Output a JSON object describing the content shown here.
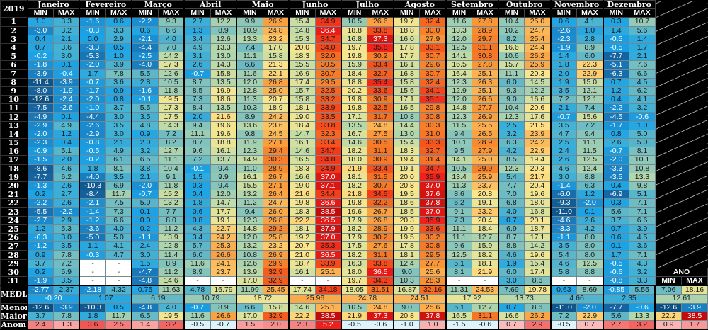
{
  "year": "2019",
  "header": {
    "min": "MIN",
    "max": "MAX",
    "ano": "ANO"
  },
  "labels": {
    "media": "MÉDIA",
    "menor": "Menor",
    "maior": "Maior",
    "anom": "Anom"
  },
  "days": [
    "1",
    "2",
    "3",
    "4",
    "5",
    "6",
    "7",
    "8",
    "9",
    "10",
    "11",
    "12",
    "13",
    "14",
    "15",
    "16",
    "17",
    "18",
    "19",
    "20",
    "21",
    "22",
    "23",
    "24",
    "25",
    "26",
    "27",
    "28",
    "29",
    "30",
    "31"
  ],
  "chart_data": {
    "type": "heatmap",
    "title": "2019",
    "months": [
      {
        "name": "Janeiro",
        "min": [
          "1.0",
          "-3.0",
          "0.4",
          "0.7",
          "-0.2",
          "-1.8",
          "-3.9",
          "-11.4",
          "-8.0",
          "-12.6",
          "-7.5",
          "-4.9",
          "-2.9",
          "-2.0",
          "-2.3",
          "-0.9",
          "-1.5",
          "-8.6",
          "-7.7",
          "-1.3",
          "0.2",
          "-2.2",
          "-5.5",
          "-2.7",
          "1.2",
          "-0.3",
          "-1.2",
          "0.9",
          "3.7",
          "0.2",
          "-1.9"
        ],
        "max": [
          "3.3",
          "3.2",
          "2.1",
          "3.6",
          "3.0",
          "0.1",
          "-0.4",
          "-3.9",
          "-1.9",
          "-2.4",
          "-2.6",
          "0.1",
          "4.9",
          "1.2",
          "0.4",
          "5.1",
          "2.0",
          "4.6",
          "6.2",
          "2.6",
          "2.7",
          "2.6",
          "-2.2",
          "2.9",
          "5.3",
          "3.0",
          "3.5",
          "7.8",
          "7.2",
          "5.9",
          "3.5"
        ],
        "avg_min": "-2.77",
        "avg_max": "2.37",
        "avg": "-0.20",
        "menor_min": "-12.6",
        "menor_max": "-3.9",
        "maior_min": "3.7",
        "maior_max": "7.8",
        "anom_min": "2.4",
        "anom_max": "1.3"
      },
      {
        "name": "Fevereiro",
        "min": [
          "-1.6",
          "-0.3",
          "0.0",
          "-3.3",
          "-5.3",
          "-2.0",
          "1.7",
          "-0.7",
          "-1.7",
          "-2.0",
          "-1.0",
          "-4.4",
          "-2.6",
          "-2.9",
          "-0.8",
          "-0.5",
          "-0.2",
          "1.8",
          "-4.0",
          "-10.3",
          "-8.4",
          "-2.1",
          "-1.4",
          "-1.2",
          "-3.6",
          "-5.0",
          "1.1",
          "-0.3",
          "-",
          "-",
          "-"
        ],
        "max": [
          "0.6",
          "3.3",
          "2.9",
          "0.5",
          "1.0",
          "3.9",
          "7.8",
          "3.6",
          "0.9",
          "0.8",
          "3.7",
          "3.0",
          "3.5",
          "3.0",
          "2.1",
          "4.9",
          "6.1",
          "8.1",
          "3.5",
          "6.9",
          "11.7",
          "7.5",
          "7.3",
          "6.6",
          "4.0",
          "5.0",
          "4.1",
          "4.7",
          "-",
          "-",
          "-"
        ],
        "avg_min": "-2.18",
        "avg_max": "4.32",
        "avg": "1.07",
        "menor_min": "-10.3",
        "menor_max": "0.5",
        "maior_min": "1.8",
        "maior_max": "11.7",
        "anom_min": "3.6",
        "anom_max": "2.5"
      },
      {
        "name": "Março",
        "min": [
          "-2.2",
          "0.6",
          "-2.1",
          "-4.4",
          "-2.5",
          "-4.0",
          "5.5",
          "2.8",
          "-1.6",
          "-0.1",
          "5.5",
          "3.5",
          "4.8",
          "0.9",
          "2.0",
          "3.2",
          "6.5",
          "3.8",
          "2.1",
          "-2.0",
          "-0.7",
          "5.0",
          "0.1",
          "0.0",
          "0.2",
          "-1.1",
          "2.4",
          "3.0",
          "1.5",
          "-4.7",
          "-4.8"
        ],
        "max": [
          "9.3",
          "6.6",
          "4.0",
          "7.0",
          "14.2",
          "17.3",
          "12.6",
          "10.5",
          "11.8",
          "19.5",
          "17.3",
          "17.5",
          "14.3",
          "7.2",
          "8.2",
          "12.7",
          "11.1",
          "10.4",
          "9.1",
          "11.8",
          "15.2",
          "13.2",
          "7.7",
          "8.0",
          "11.2",
          "13.9",
          "12.8",
          "11.4",
          "8.9",
          "11.2",
          "14.6"
        ],
        "avg_min": "0.75",
        "avg_max": "11.63",
        "avg": "6.19",
        "menor_min": "-4.8",
        "menor_max": "4.0",
        "maior_min": "6.5",
        "maior_max": "19.5",
        "anom_min": "1.4",
        "anom_max": "3.2"
      },
      {
        "name": "Abril",
        "min": [
          "2.7",
          "1.3",
          "3.4",
          "4.9",
          "3.1",
          "2.6",
          "-0.7",
          "8.7",
          "8.5",
          "7.3",
          "8.4",
          "2.0",
          "9.4",
          "11.1",
          "8.7",
          "9.6",
          "7.2",
          "-0.1",
          "1.5",
          "0.3",
          "0.4",
          "1.8",
          "0.6",
          "0.8",
          "4.3",
          "3.4",
          "5.7",
          "6.0",
          "11.6",
          "8.9",
          "-"
        ],
        "max": [
          "12.2",
          "8.9",
          "12.6",
          "13.3",
          "13.0",
          "14.3",
          "15.8",
          "13.5",
          "19.9",
          "18.6",
          "13.5",
          "21.6",
          "19.6",
          "19.6",
          "18.8",
          "16.1",
          "13.7",
          "9.4",
          "9.9",
          "9.4",
          "12.0",
          "14.7",
          "17.7",
          "19.1",
          "22.7",
          "24.2",
          "25.3",
          "26.6",
          "24.1",
          "23.7",
          "-"
        ],
        "avg_min": "4.78",
        "avg_max": "16.79",
        "avg": "10.79",
        "menor_min": "-0.7",
        "menor_max": "8.9",
        "maior_min": "11.6",
        "maior_max": "26.6",
        "anom_min": "-0.5",
        "anom_max": "-0.7"
      },
      {
        "name": "Maio",
        "min": [
          "9.9",
          "10.9",
          "13.3",
          "7.4",
          "11.1",
          "6.6",
          "11.6",
          "12.0",
          "12.8",
          "11.3",
          "10.3",
          "8.9",
          "13.6",
          "9.8",
          "11.9",
          "12.3",
          "14.9",
          "11.0",
          "16.1",
          "15.5",
          "13.2",
          "11.2",
          "9.4",
          "12.3",
          "14.8",
          "12.0",
          "13.2",
          "10.8",
          "12.6",
          "13.9",
          "17.0"
        ],
        "max": [
          "26.9",
          "24.8",
          "23.2",
          "17.0",
          "15.8",
          "21.3",
          "22.1",
          "26.8",
          "25.0",
          "20.7",
          "18.9",
          "24.2",
          "23.6",
          "24.5",
          "27.1",
          "29.4",
          "30.3",
          "28.9",
          "26.7",
          "27.1",
          "26.4",
          "24.7",
          "26.0",
          "26.8",
          "29.2",
          "25.8",
          "23.2",
          "26.9",
          "29.9",
          "32.9",
          "32.9"
        ],
        "avg_min": "11.99",
        "avg_max": "25.45",
        "avg": "18.72",
        "menor_min": "6.6",
        "menor_max": "15.8",
        "maior_min": "17.0",
        "maior_max": "32.9",
        "anom_min": "1.5",
        "anom_max": "2.0"
      },
      {
        "name": "Junho",
        "min": [
          "15.4",
          "14.8",
          "15.3",
          "20.0",
          "18.3",
          "15.5",
          "16.9",
          "17.4",
          "15.7",
          "15.8",
          "18.1",
          "19.0",
          "18.4",
          "14.7",
          "16.1",
          "14.6",
          "16.5",
          "18.3",
          "16.6",
          "19.0",
          "21.6",
          "19.8",
          "18.3",
          "22.2",
          "18.1",
          "19.2",
          "20.7",
          "21.0",
          "18.7",
          "16.1",
          "-"
        ],
        "max": [
          "34.9",
          "36.4",
          "34.7",
          "34.0",
          "32.0",
          "30.5",
          "30.7",
          "29.5",
          "32.5",
          "33.2",
          "33.9",
          "33.5",
          "33.8",
          "32.3",
          "33.4",
          "34.7",
          "34.8",
          "34.9",
          "37.0",
          "37.1",
          "34.4",
          "36.6",
          "38.5",
          "36.5",
          "37.9",
          "37.0",
          "35.3",
          "36.5",
          "33.9",
          "25.1",
          "-"
        ],
        "avg_min": "17.74",
        "avg_max": "34.18",
        "avg": "25.96",
        "menor_min": "14.6",
        "menor_max": "25.1",
        "maior_min": "22.2",
        "maior_max": "38.5",
        "anom_min": "2.3",
        "anom_max": "5.2"
      },
      {
        "name": "Julho",
        "min": [
          "10.5",
          "18.8",
          "16.8",
          "19.7",
          "19.8",
          "15.9",
          "18.4",
          "18.8",
          "20.2",
          "19.8",
          "19.8",
          "17.1",
          "13.5",
          "16.7",
          "14.6",
          "18.2",
          "18.0",
          "21.9",
          "18.1",
          "18.2",
          "21.8",
          "19.8",
          "19.6",
          "17.9",
          "18.2",
          "17.9",
          "17.5",
          "18.2",
          "16.3",
          "18.0",
          "19.7"
        ],
        "max": [
          "26.6",
          "33.8",
          "37.3",
          "35.8",
          "30.2",
          "33.4",
          "32.7",
          "35.4",
          "33.6",
          "30.9",
          "32.5",
          "31.7",
          "24.8",
          "27.5",
          "30.5",
          "31.1",
          "30.9",
          "33.4",
          "31.5",
          "30.7",
          "34.5",
          "32.2",
          "26.7",
          "26.8",
          "28.9",
          "30.2",
          "27.6",
          "31.1",
          "33.8",
          "36.5",
          "34.3"
        ],
        "avg_min": "18.05",
        "avg_max": "31.51",
        "avg": "24.78",
        "menor_min": "10.5",
        "menor_max": "24.8",
        "maior_min": "21.9",
        "maior_max": "37.3",
        "anom_min": "-0.5",
        "anom_max": "-0.6"
      },
      {
        "name": "Agosto",
        "min": [
          "19.7",
          "18.8",
          "16.0",
          "17.8",
          "17.7",
          "16.1",
          "16.8",
          "15.8",
          "15.6",
          "17.1",
          "16.5",
          "10.8",
          "14.4",
          "13.0",
          "15.4",
          "18.3",
          "19.4",
          "19.1",
          "20.0",
          "20.8",
          "19.5",
          "18.6",
          "18.5",
          "20.3",
          "19.9",
          "19.5",
          "17.8",
          "18.1",
          "12.4",
          "9.0",
          "10.3"
        ],
        "max": [
          "32.4",
          "30.0",
          "27.9",
          "33.1",
          "30.7",
          "29.6",
          "30.7",
          "32.4",
          "34.1",
          "35.1",
          "29.8",
          "30.8",
          "30.3",
          "31.0",
          "33.3",
          "32.7",
          "31.4",
          "34.7",
          "35.9",
          "37.0",
          "37.6",
          "37.8",
          "37.0",
          "35.9",
          "33.6",
          "30.2",
          "30.8",
          "29.5",
          "27.7",
          "25.6",
          "28.3"
        ],
        "avg_min": "16.87",
        "avg_max": "32.16",
        "avg": "24.51",
        "menor_min": "9.0",
        "menor_max": "25.6",
        "maior_min": "20.8",
        "maior_max": "37.8",
        "anom_min": "-1.0",
        "anom_max": "1.0"
      },
      {
        "name": "Setembro",
        "min": [
          "11.6",
          "13.3",
          "12.0",
          "12.5",
          "14.1",
          "16.5",
          "16.4",
          "12.3",
          "12.9",
          "12.0",
          "14.8",
          "12.3",
          "11.5",
          "9.4",
          "10.1",
          "9.5",
          "14.1",
          "10.5",
          "13.4",
          "11.3",
          "8.6",
          "6.2",
          "9.1",
          "7.3",
          "11.1",
          "11.1",
          "9.6",
          "12.5",
          "5.1",
          "8.1",
          "-"
        ],
        "max": [
          "27.8",
          "28.9",
          "29.7",
          "31.1",
          "30.8",
          "27.8",
          "25.1",
          "26.3",
          "25.1",
          "26.6",
          "27.7",
          "26.9",
          "25.5",
          "26.5",
          "28.9",
          "27.9",
          "25.0",
          "29.9",
          "25.9",
          "23.7",
          "20.8",
          "19.1",
          "23.2",
          "20.4",
          "18.4",
          "12.7",
          "15.9",
          "18.2",
          "18.1",
          "21.9",
          "-"
        ],
        "avg_min": "11.31",
        "avg_max": "24.53",
        "avg": "17.92",
        "menor_min": "5.1",
        "menor_max": "12.7",
        "maior_min": "16.5",
        "maior_max": "31.1",
        "anom_min": "-1.5",
        "anom_max": "-0.6"
      },
      {
        "name": "Outubro",
        "min": [
          "10.4",
          "10.2",
          "8.2",
          "16.6",
          "10.6",
          "15.7",
          "11.1",
          "6.0",
          "9.3",
          "9.0",
          "10.4",
          "12.3",
          "2.5",
          "3.2",
          "6.3",
          "4.2",
          "8.5",
          "12.3",
          "5.4",
          "7.7",
          "7.0",
          "6.8",
          "4.0",
          "0.7",
          "6.9",
          "8.7",
          "8.8",
          "4.6",
          "1.9",
          "6.0",
          "3.0"
        ],
        "max": [
          "25.0",
          "24.7",
          "25.4",
          "24.4",
          "26.2",
          "25.9",
          "20.3",
          "14.5",
          "12.2",
          "16.6",
          "20.6",
          "17.6",
          "21.5",
          "23.9",
          "24.2",
          "22.9",
          "19.4",
          "20.3",
          "21.7",
          "20.4",
          "19.6",
          "18.0",
          "16.8",
          "20.1",
          "18.7",
          "17.1",
          "14.2",
          "19.6",
          "15.4",
          "17.4",
          "8.6"
        ],
        "avg_min": "7.69",
        "avg_max": "19.78",
        "avg": "13.73",
        "menor_min": "0.7",
        "menor_max": "8.6",
        "maior_min": "16.6",
        "maior_max": "26.2",
        "anom_min": "0.7",
        "anom_max": "2.9"
      },
      {
        "name": "Novembro",
        "min": [
          "0.6",
          "-2.6",
          "-2.3",
          "-1.9",
          "1.4",
          "1.8",
          "2.0",
          "1.9",
          "3.5",
          "7.2",
          "2.1",
          "-0.7",
          "3.5",
          "4.7",
          "2.5",
          "2.4",
          "2.6",
          "4.6",
          "3.0",
          "-1.4",
          "-6.0",
          "-9.3",
          "-11.0",
          "-4.6",
          "-3.3",
          "-1.1",
          "3.5",
          "5.4",
          "4.6",
          "5.8",
          "-"
        ],
        "max": [
          "4.1",
          "1.0",
          "2.8",
          "8.9",
          "6.0",
          "22.3",
          "22.9",
          "15.0",
          "12.1",
          "12.1",
          "7.4",
          "15.6",
          "7.2",
          "9.4",
          "11.1",
          "11.5",
          "12.5",
          "12.4",
          "8.8",
          "6.3",
          "1.2",
          "-2.0",
          "0.1",
          "2.6",
          "4.2",
          "8.0",
          "8.0",
          "8.0",
          "12.5",
          "8.8",
          "-"
        ],
        "avg_min": "0.63",
        "avg_max": "8.69",
        "avg": "4.66",
        "menor_min": "-11.0",
        "menor_max": "-2.0",
        "maior_min": "7.2",
        "maior_max": "22.9",
        "anom_min": "-0.5",
        "anom_max": "0.7"
      },
      {
        "name": "Dezembro",
        "min": [
          "0.3",
          "1.4",
          "-0.5",
          "-0.5",
          "-7.7",
          "-5.1",
          "-6.3",
          "0.7",
          "1.2",
          "0.4",
          "-2.2",
          "-4.5",
          "-1.7",
          "0.8",
          "2.6",
          "-0.7",
          "-2.0",
          "-3.3",
          "-3.5",
          "0.4",
          "-6.9",
          "0.3",
          "5.6",
          "3.7",
          "0.7",
          "0.6",
          "0.1",
          "1.7",
          "-0.5",
          "-0.6",
          "-0.8"
        ],
        "max": [
          "10.7",
          "5.6",
          "1.4",
          "1.7",
          "2.1",
          "7.6",
          "6.6",
          "4.5",
          "6.2",
          "4.1",
          "3.2",
          "-0.6",
          "1.0",
          "5.0",
          "5.0",
          "8.1",
          "10.1",
          "10.8",
          "13.3",
          "9.8",
          "5.1",
          "7.1",
          "7.1",
          "6.6",
          "3.9",
          "4.5",
          "3.6",
          "7.1",
          "4.3",
          "3.2",
          "3.3"
        ],
        "avg_min": "-0.85",
        "avg_max": "5.55",
        "avg": "2.35",
        "menor_min": "-7.7",
        "menor_max": "-0.6",
        "maior_min": "5.6",
        "maior_max": "13.3",
        "anom_min": "2.7",
        "anom_max": "3.2"
      }
    ],
    "ano": {
      "avg_min": "7.06",
      "avg_max": "18.16",
      "avg": "12.61",
      "menor_min": "-12.6",
      "menor_max": "-3.9",
      "maior_min": "22.2",
      "maior_max": "38.5",
      "anom_min": "0.9",
      "anom_max": "1.7"
    },
    "color_scale": [
      [
        -12.6,
        "#0d4f80"
      ],
      [
        -7,
        "#1766a3"
      ],
      [
        -3,
        "#1a86c9"
      ],
      [
        0,
        "#1ba3e6"
      ],
      [
        3,
        "#3fb0d6"
      ],
      [
        6,
        "#62b8c6"
      ],
      [
        10,
        "#8ec7b8"
      ],
      [
        14,
        "#bcd9a8"
      ],
      [
        18,
        "#e6e497"
      ],
      [
        21,
        "#fde58a"
      ],
      [
        24,
        "#fbbd5e"
      ],
      [
        28,
        "#f99434"
      ],
      [
        32,
        "#f66d22"
      ],
      [
        34,
        "#f4481b"
      ],
      [
        36,
        "#ef1f1a"
      ],
      [
        38.5,
        "#c30b0b"
      ]
    ],
    "anom_colors": {
      "neg": "#dff3fb",
      "pos_low": "#fcd3d3",
      "pos_high": "#ef1f1a"
    }
  }
}
